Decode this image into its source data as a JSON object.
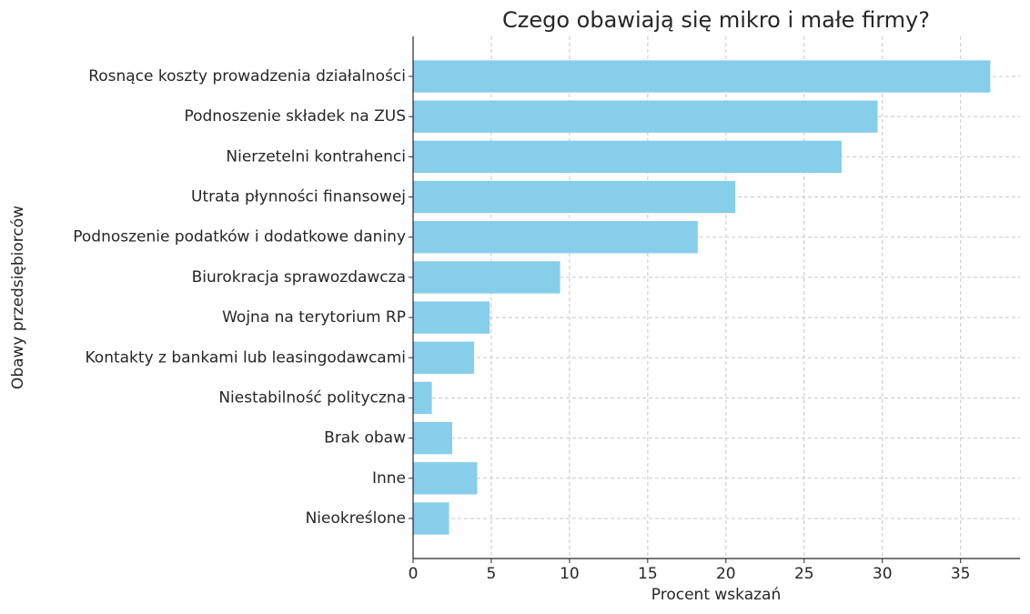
{
  "chart_data": {
    "type": "barh",
    "title": "Czego obawiają się mikro i małe firmy?",
    "xlabel": "Procent wskazań",
    "ylabel": "Obawy przedsiębiorców",
    "categories": [
      "Rosnące koszty prowadzenia działalności",
      "Podnoszenie składek na ZUS",
      "Nierzetelni kontrahenci",
      "Utrata płynności finansowej",
      "Podnoszenie podatków i dodatkowe daniny",
      "Biurokracja sprawozdawcza",
      "Wojna na terytorium RP",
      "Kontakty z bankami lub leasingodawcami",
      "Niestabilność polityczna",
      "Brak obaw",
      "Inne",
      "Nieokreślone"
    ],
    "values": [
      36.9,
      29.7,
      27.4,
      20.6,
      18.2,
      9.4,
      4.9,
      3.9,
      1.2,
      2.5,
      4.1,
      2.3
    ],
    "color": "#87ceeb",
    "xlim": [
      0,
      38.8
    ],
    "xticks": [
      0,
      5,
      10,
      15,
      20,
      25,
      30,
      35
    ],
    "grid": true
  }
}
